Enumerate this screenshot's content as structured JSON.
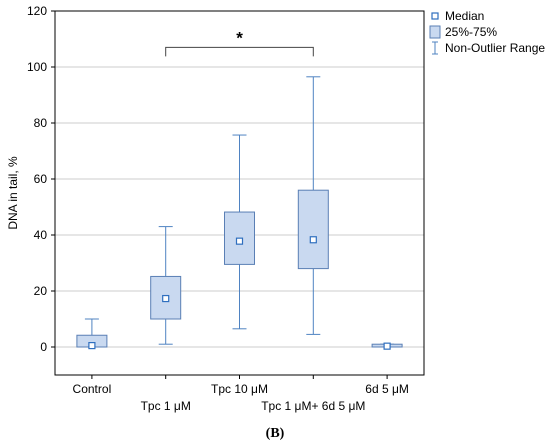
{
  "chart_data": {
    "type": "box",
    "title": "",
    "xlabel": "",
    "ylabel": "DNA in tail, %",
    "ylim": [
      -10,
      120
    ],
    "yticks": [
      0,
      20,
      40,
      60,
      80,
      100,
      120
    ],
    "grid": true,
    "legend_position": "top-right",
    "legend": [
      {
        "label": "Median",
        "key": "median"
      },
      {
        "label": "25%-75%",
        "key": "box"
      },
      {
        "label": "Non-Outlier Range",
        "key": "whisker"
      }
    ],
    "categories": [
      "Control",
      "Tpc 1 μM",
      "Tpc 10 μM",
      "Tpc 1 μM+ 6d 5 μM",
      "6d 5 μM"
    ],
    "boxes": [
      {
        "category": "Control",
        "min": 0,
        "q1": 0,
        "median": 0.5,
        "q3": 4.2,
        "max": 10
      },
      {
        "category": "Tpc 1 μM",
        "min": 1,
        "q1": 10,
        "median": 17.3,
        "q3": 25.2,
        "max": 43
      },
      {
        "category": "Tpc 10 μM",
        "min": 6.5,
        "q1": 29.5,
        "median": 37.8,
        "q3": 48.2,
        "max": 75.7
      },
      {
        "category": "Tpc 1 μM+ 6d 5 μM",
        "min": 4.5,
        "q1": 28,
        "median": 38.3,
        "q3": 56,
        "max": 96.5
      },
      {
        "category": "6d 5 μM",
        "min": 0,
        "q1": 0,
        "median": 0.3,
        "q3": 1,
        "max": 1
      }
    ],
    "significance": {
      "from": "Tpc 1 μM",
      "to": "Tpc 1 μM+ 6d 5 μM",
      "y": 107,
      "label": "*"
    },
    "colors": {
      "box_fill": "#c9d9f0",
      "box_stroke": "#5a7fb5",
      "whisker": "#4f83c2",
      "median": "#2f6fbf",
      "grid": "#cccccc"
    }
  },
  "panel_label": "(B)"
}
